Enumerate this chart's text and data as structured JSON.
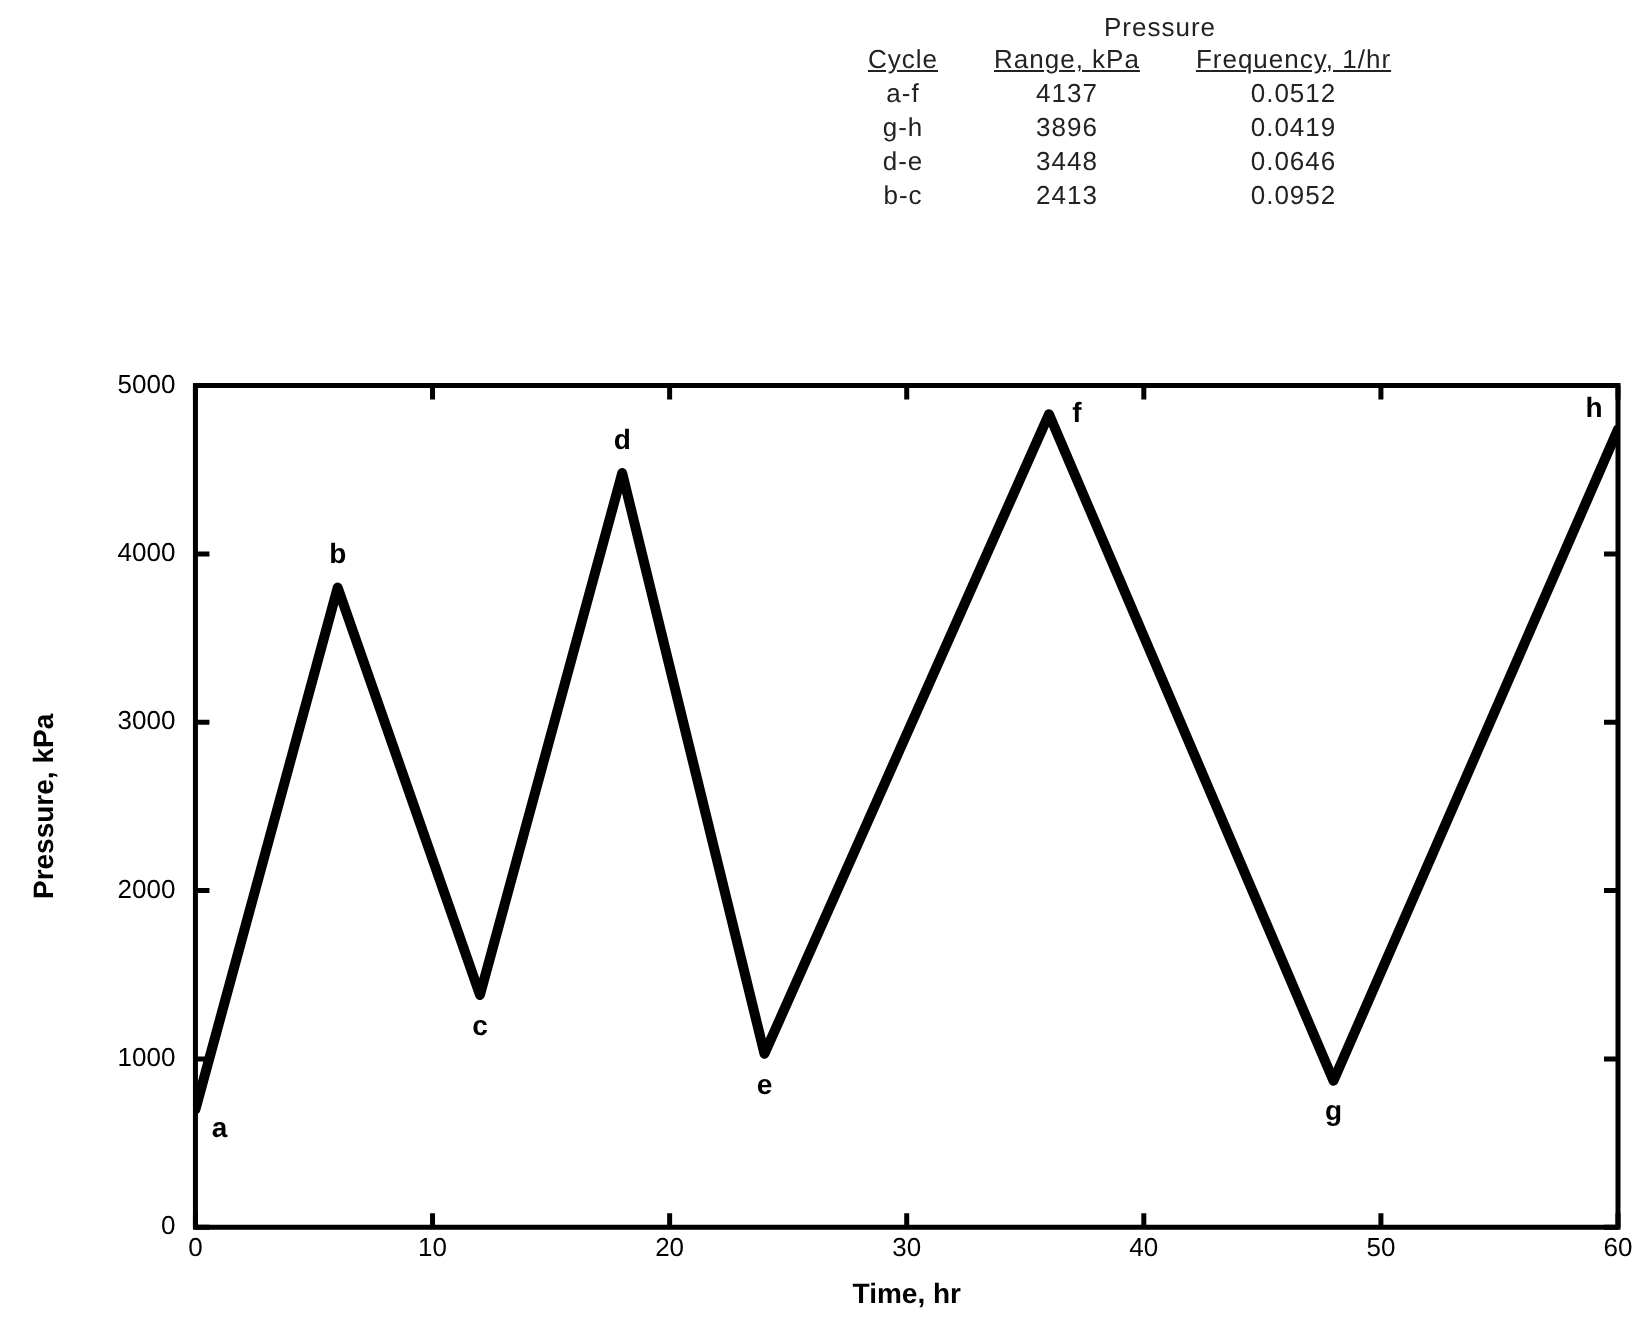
{
  "chart_data": {
    "type": "line",
    "xlabel": "Time, hr",
    "ylabel": "Pressure, kPa",
    "x": [
      0,
      6,
      12,
      18,
      24,
      36,
      48,
      60
    ],
    "series": [
      {
        "color": "#000000",
        "values": [
          700,
          3800,
          1380,
          4480,
          1030,
          4830,
          870,
          4740
        ]
      }
    ],
    "xlim": [
      0,
      60
    ],
    "xticks": [
      0,
      10,
      20,
      30,
      40,
      50,
      60
    ],
    "ylim": [
      0,
      5000
    ],
    "yticks": [
      0,
      1000,
      2000,
      3000,
      4000,
      5000
    ],
    "grid": false,
    "legend": false,
    "marker": "none",
    "line_style": "solid",
    "annotations": [
      "Pressure",
      "Cycle",
      "Range, kPa",
      "Frequency, 1/hr",
      "a-f",
      "4137",
      "0.0512",
      "g-h",
      "3896",
      "0.0419",
      "d-e",
      "3448",
      "0.0646",
      "b-c",
      "2413",
      "0.0952",
      {
        "text": "a",
        "x": 0,
        "y": 700
      },
      {
        "text": "b",
        "x": 6,
        "y": 3800
      },
      {
        "text": "c",
        "x": 12,
        "y": 1380
      },
      {
        "text": "d",
        "x": 18,
        "y": 4480
      },
      {
        "text": "e",
        "x": 24,
        "y": 1030
      },
      {
        "text": "f",
        "x": 36,
        "y": 4830
      },
      {
        "text": "g",
        "x": 48,
        "y": 870
      },
      {
        "text": "h",
        "x": 60,
        "y": 4740
      }
    ]
  }
}
